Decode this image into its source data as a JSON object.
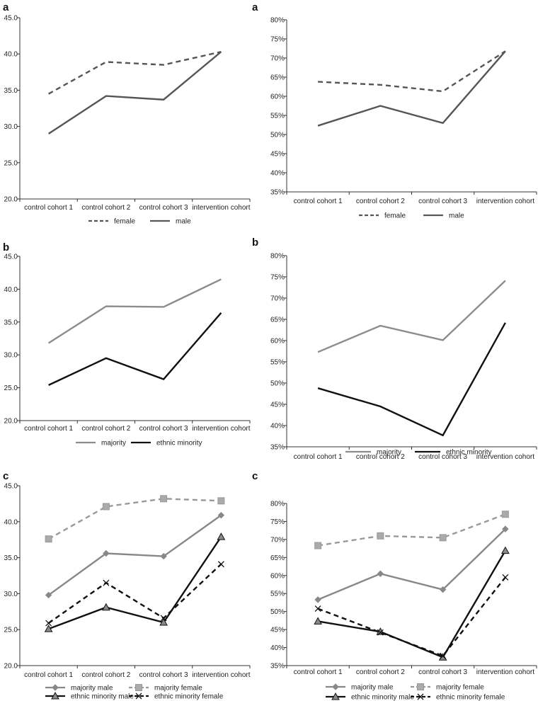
{
  "chart_data": [
    {
      "type": "line",
      "panel": "a",
      "categories": [
        "control cohort 1",
        "control cohort 2",
        "control cohort 3",
        "intervention cohort"
      ],
      "ylim": [
        20,
        45
      ],
      "yticks": [
        "20.0",
        "25.0",
        "30.0",
        "35.0",
        "40.0",
        "45.0"
      ],
      "series": [
        {
          "name": "female",
          "values": [
            34.5,
            38.9,
            38.5,
            40.3
          ],
          "color": "#555555",
          "dash": "dashed",
          "marker": "none"
        },
        {
          "name": "male",
          "values": [
            29.0,
            34.2,
            33.7,
            40.3
          ],
          "color": "#555555",
          "dash": "solid",
          "marker": "none"
        }
      ]
    },
    {
      "type": "line",
      "panel": "a",
      "categories": [
        "control cohort 1",
        "control cohort 2",
        "control cohort 3",
        "intervention cohort"
      ],
      "ylim": [
        35,
        80
      ],
      "yticks": [
        "35%",
        "40%",
        "45%",
        "50%",
        "55%",
        "60%",
        "65%",
        "70%",
        "75%",
        "80%"
      ],
      "series": [
        {
          "name": "female",
          "values": [
            63.8,
            63.0,
            61.3,
            71.8
          ],
          "color": "#555555",
          "dash": "dashed",
          "marker": "none"
        },
        {
          "name": "male",
          "values": [
            52.3,
            57.5,
            53.0,
            71.8
          ],
          "color": "#555555",
          "dash": "solid",
          "marker": "none"
        }
      ]
    },
    {
      "type": "line",
      "panel": "b",
      "categories": [
        "control cohort 1",
        "control cohort 2",
        "control cohort 3",
        "intervention cohort"
      ],
      "ylim": [
        20,
        45
      ],
      "yticks": [
        "20.0",
        "25.0",
        "30.0",
        "35.0",
        "40.0",
        "45.0"
      ],
      "series": [
        {
          "name": "majority",
          "values": [
            31.8,
            37.4,
            37.3,
            41.5
          ],
          "color": "#8c8c8c",
          "dash": "solid",
          "marker": "none"
        },
        {
          "name": "ethnic minority",
          "values": [
            25.4,
            29.5,
            26.3,
            36.4
          ],
          "color": "#111111",
          "dash": "solid",
          "marker": "none"
        }
      ]
    },
    {
      "type": "line",
      "panel": "b",
      "categories": [
        "control cohort 1",
        "control cohort 2",
        "control cohort 3",
        "intervention cohort"
      ],
      "ylim": [
        35,
        80
      ],
      "yticks": [
        "35%",
        "40%",
        "45%",
        "50%",
        "55%",
        "60%",
        "65%",
        "70%",
        "75%",
        "80%"
      ],
      "series": [
        {
          "name": "majority",
          "values": [
            57.3,
            63.5,
            60.1,
            74.1
          ],
          "color": "#8c8c8c",
          "dash": "solid",
          "marker": "none"
        },
        {
          "name": "ethnic minority",
          "values": [
            48.8,
            44.5,
            37.7,
            64.2
          ],
          "color": "#111111",
          "dash": "solid",
          "marker": "none"
        }
      ]
    },
    {
      "type": "line",
      "panel": "c",
      "categories": [
        "control cohort 1",
        "control cohort 2",
        "control cohort 3",
        "intervention cohort"
      ],
      "ylim": [
        20,
        45
      ],
      "yticks": [
        "20.0",
        "25.0",
        "30.0",
        "35.0",
        "40.0",
        "45.0"
      ],
      "series": [
        {
          "name": "majority male",
          "values": [
            29.8,
            35.6,
            35.2,
            40.9
          ],
          "color": "#888888",
          "dash": "solid",
          "marker": "diamond"
        },
        {
          "name": "majority female",
          "values": [
            37.6,
            42.1,
            43.2,
            42.9
          ],
          "color": "#999999",
          "dash": "dashed",
          "marker": "square"
        },
        {
          "name": "ethnic minority male",
          "values": [
            25.1,
            28.1,
            26.0,
            37.9
          ],
          "color": "#111111",
          "dash": "solid",
          "marker": "triangle"
        },
        {
          "name": "ethnic minority female",
          "values": [
            25.9,
            31.5,
            26.6,
            34.1
          ],
          "color": "#111111",
          "dash": "dashed",
          "marker": "cross"
        }
      ]
    },
    {
      "type": "line",
      "panel": "c",
      "categories": [
        "control cohort 1",
        "control cohort 2",
        "control cohort 3",
        "intervention cohort"
      ],
      "ylim": [
        35,
        80
      ],
      "yticks": [
        "35%",
        "40%",
        "45%",
        "50%",
        "55%",
        "60%",
        "65%",
        "70%",
        "75%",
        "80%"
      ],
      "series": [
        {
          "name": "majority male",
          "values": [
            53.3,
            60.5,
            56.1,
            72.9
          ],
          "color": "#888888",
          "dash": "solid",
          "marker": "diamond"
        },
        {
          "name": "majority female",
          "values": [
            68.3,
            71.0,
            70.5,
            77.0
          ],
          "color": "#999999",
          "dash": "dashed",
          "marker": "square"
        },
        {
          "name": "ethnic minority male",
          "values": [
            47.3,
            44.4,
            37.3,
            66.9
          ],
          "color": "#111111",
          "dash": "solid",
          "marker": "triangle"
        },
        {
          "name": "ethnic minority female",
          "values": [
            50.8,
            44.2,
            37.7,
            59.5
          ],
          "color": "#111111",
          "dash": "dashed",
          "marker": "cross"
        }
      ]
    }
  ]
}
